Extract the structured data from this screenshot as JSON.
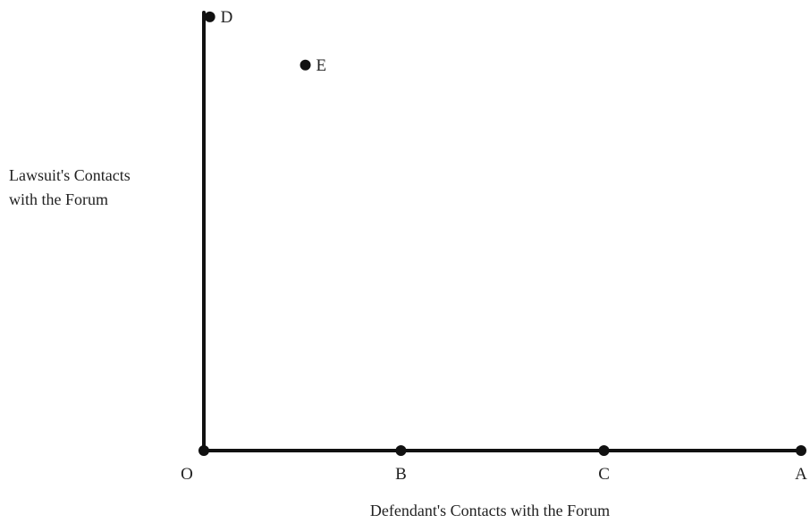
{
  "chart_data": {
    "type": "scatter",
    "title": "",
    "xlabel": "Defendant's Contacts with the Forum",
    "ylabel_lines": [
      "Lawsuit's Contacts",
      "with the Forum"
    ],
    "xlim": [
      0,
      1
    ],
    "ylim": [
      0,
      1
    ],
    "grid": false,
    "points": [
      {
        "label": "O",
        "x": 0,
        "y": 0
      },
      {
        "label": "B",
        "x": 0.33,
        "y": 0
      },
      {
        "label": "C",
        "x": 0.67,
        "y": 0
      },
      {
        "label": "A",
        "x": 1,
        "y": 0
      },
      {
        "label": "D",
        "x": 0.01,
        "y": 0.99
      },
      {
        "label": "E",
        "x": 0.17,
        "y": 0.88
      }
    ],
    "colors": {
      "ink": "#111111",
      "text": "#222222"
    }
  }
}
